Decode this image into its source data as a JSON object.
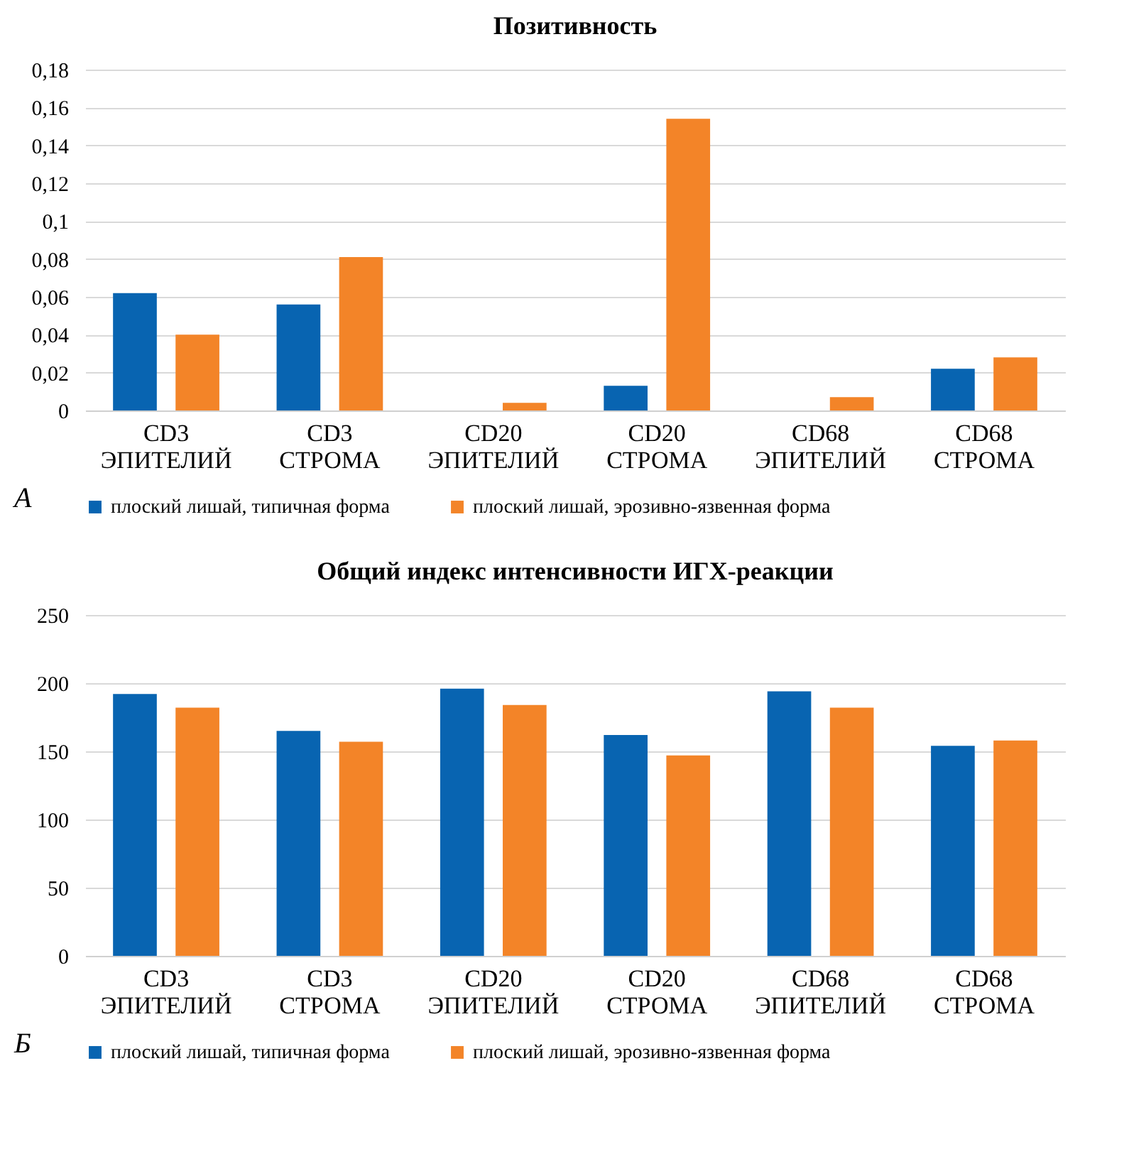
{
  "chart_data": [
    {
      "type": "bar",
      "title": "Позитивность",
      "categories": [
        "CD3 ЭПИТЕЛИЙ",
        "CD3 СТРОМА",
        "CD20 ЭПИТЕЛИЙ",
        "CD20 СТРОМА",
        "CD68 ЭПИТЕЛИЙ",
        "CD68 СТРОМА"
      ],
      "series": [
        {
          "name": "плоский лишай, типичная форма",
          "color": "#0864b1",
          "values": [
            0.062,
            0.056,
            0,
            0.013,
            0,
            0.022
          ]
        },
        {
          "name": "плоский лишай, эрозивно-язвенная форма",
          "color": "#f38428",
          "values": [
            0.04,
            0.081,
            0.004,
            0.154,
            0.007,
            0.028
          ]
        }
      ],
      "ylim": [
        0,
        0.18
      ],
      "yticks": [
        0,
        {
          "value": 0.02,
          "label": "0,02"
        },
        {
          "value": 0.04,
          "label": "0,04"
        },
        {
          "value": 0.06,
          "label": "0,06"
        },
        {
          "value": 0.08,
          "label": "0,08"
        },
        {
          "value": 0.1,
          "label": "0,1"
        },
        {
          "value": 0.12,
          "label": "0,12"
        },
        {
          "value": 0.14,
          "label": "0,14"
        },
        {
          "value": 0.16,
          "label": "0,16"
        },
        {
          "value": 0.18,
          "label": "0,18"
        }
      ],
      "grid": "y",
      "legend": "bottom",
      "annotations": [
        "А"
      ]
    },
    {
      "type": "bar",
      "title": "Общий индекс интенсивности ИГХ-реакции",
      "categories": [
        "CD3 ЭПИТЕЛИЙ",
        "CD3 СТРОМА",
        "CD20 ЭПИТЕЛИЙ",
        "CD20 СТРОМА",
        "CD68 ЭПИТЕЛИЙ",
        "CD68 СТРОМА"
      ],
      "series": [
        {
          "name": "плоский лишай, типичная форма",
          "color": "#0864b1",
          "values": [
            192,
            165,
            196,
            162,
            194,
            154
          ]
        },
        {
          "name": "плоский лишай, эрозивно-язвенная форма",
          "color": "#f38428",
          "values": [
            182,
            157,
            184,
            147,
            182,
            158
          ]
        }
      ],
      "ylim": [
        0,
        250
      ],
      "yticks": [
        0,
        50,
        100,
        150,
        200,
        250
      ],
      "grid": "y",
      "legend": "bottom",
      "annotations": [
        "Б"
      ]
    }
  ]
}
